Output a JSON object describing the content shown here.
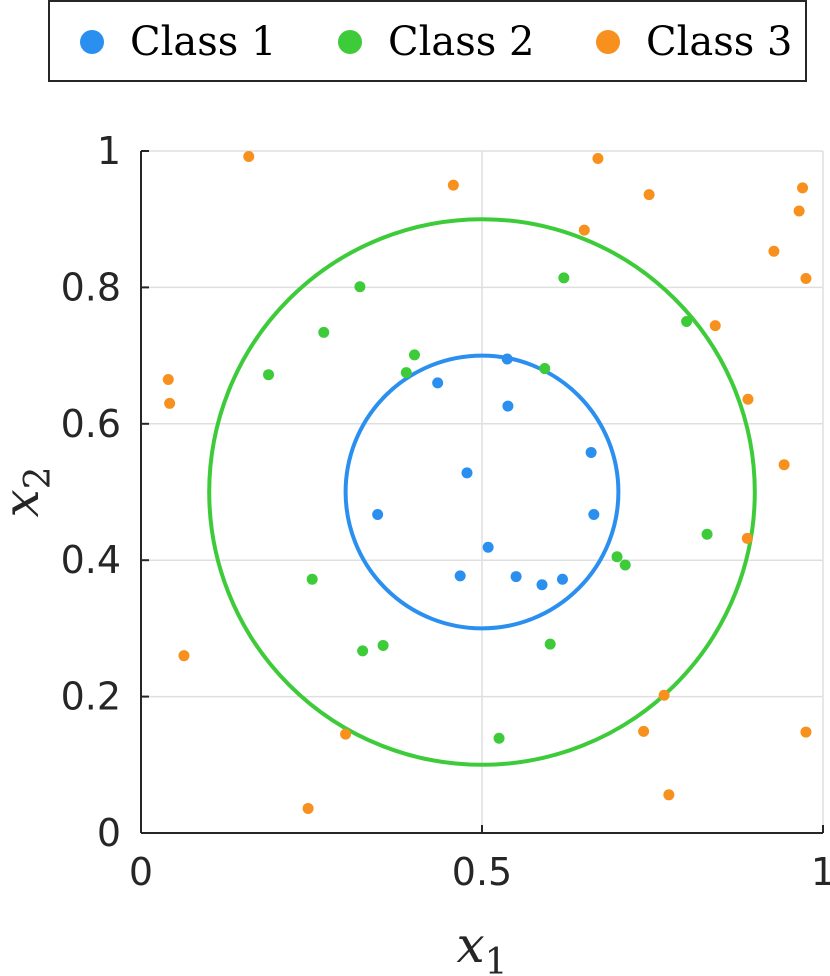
{
  "chart_data": {
    "type": "scatter",
    "title": "",
    "xlabel": "x",
    "xlabel_sub": "1",
    "ylabel": "x",
    "ylabel_sub": "2",
    "xlim": [
      0,
      1
    ],
    "ylim": [
      0,
      1
    ],
    "x_ticks": [
      0,
      0.5,
      1
    ],
    "x_tick_labels": [
      "0",
      "0.5",
      "1"
    ],
    "y_ticks": [
      0,
      0.2,
      0.4,
      0.6,
      0.8,
      1
    ],
    "y_tick_labels": [
      "0",
      "0.2",
      "0.4",
      "0.6",
      "0.8",
      "1"
    ],
    "grid": true,
    "legend_placement": "top, outside, horizontal",
    "series": [
      {
        "name": "Class 1",
        "color": "#2b8ff0",
        "points": [
          [
            0.537,
            0.695
          ],
          [
            0.435,
            0.66
          ],
          [
            0.538,
            0.626
          ],
          [
            0.478,
            0.528
          ],
          [
            0.66,
            0.558
          ],
          [
            0.347,
            0.467
          ],
          [
            0.664,
            0.467
          ],
          [
            0.509,
            0.419
          ],
          [
            0.468,
            0.377
          ],
          [
            0.55,
            0.376
          ],
          [
            0.588,
            0.364
          ],
          [
            0.618,
            0.372
          ]
        ]
      },
      {
        "name": "Class 2",
        "color": "#3ecb3a",
        "points": [
          [
            0.321,
            0.801
          ],
          [
            0.62,
            0.814
          ],
          [
            0.268,
            0.734
          ],
          [
            0.8,
            0.75
          ],
          [
            0.401,
            0.701
          ],
          [
            0.389,
            0.675
          ],
          [
            0.187,
            0.672
          ],
          [
            0.592,
            0.681
          ],
          [
            0.83,
            0.438
          ],
          [
            0.698,
            0.405
          ],
          [
            0.71,
            0.393
          ],
          [
            0.251,
            0.372
          ],
          [
            0.325,
            0.267
          ],
          [
            0.355,
            0.275
          ],
          [
            0.6,
            0.277
          ],
          [
            0.525,
            0.139
          ]
        ]
      },
      {
        "name": "Class 3",
        "color": "#f7901c",
        "points": [
          [
            0.158,
            0.992
          ],
          [
            0.458,
            0.95
          ],
          [
            0.67,
            0.989
          ],
          [
            0.745,
            0.936
          ],
          [
            0.97,
            0.946
          ],
          [
            0.965,
            0.912
          ],
          [
            0.65,
            0.884
          ],
          [
            0.928,
            0.853
          ],
          [
            0.975,
            0.813
          ],
          [
            0.842,
            0.744
          ],
          [
            0.04,
            0.665
          ],
          [
            0.042,
            0.63
          ],
          [
            0.89,
            0.636
          ],
          [
            0.943,
            0.54
          ],
          [
            0.889,
            0.432
          ],
          [
            0.063,
            0.26
          ],
          [
            0.767,
            0.202
          ],
          [
            0.3,
            0.145
          ],
          [
            0.737,
            0.149
          ],
          [
            0.975,
            0.148
          ],
          [
            0.245,
            0.036
          ],
          [
            0.774,
            0.056
          ]
        ]
      }
    ],
    "circles": [
      {
        "center": [
          0.5,
          0.5
        ],
        "radius": 0.2,
        "color": "#2b8ff0"
      },
      {
        "center": [
          0.5,
          0.5
        ],
        "radius": 0.4,
        "color": "#3ecb3a"
      }
    ]
  }
}
